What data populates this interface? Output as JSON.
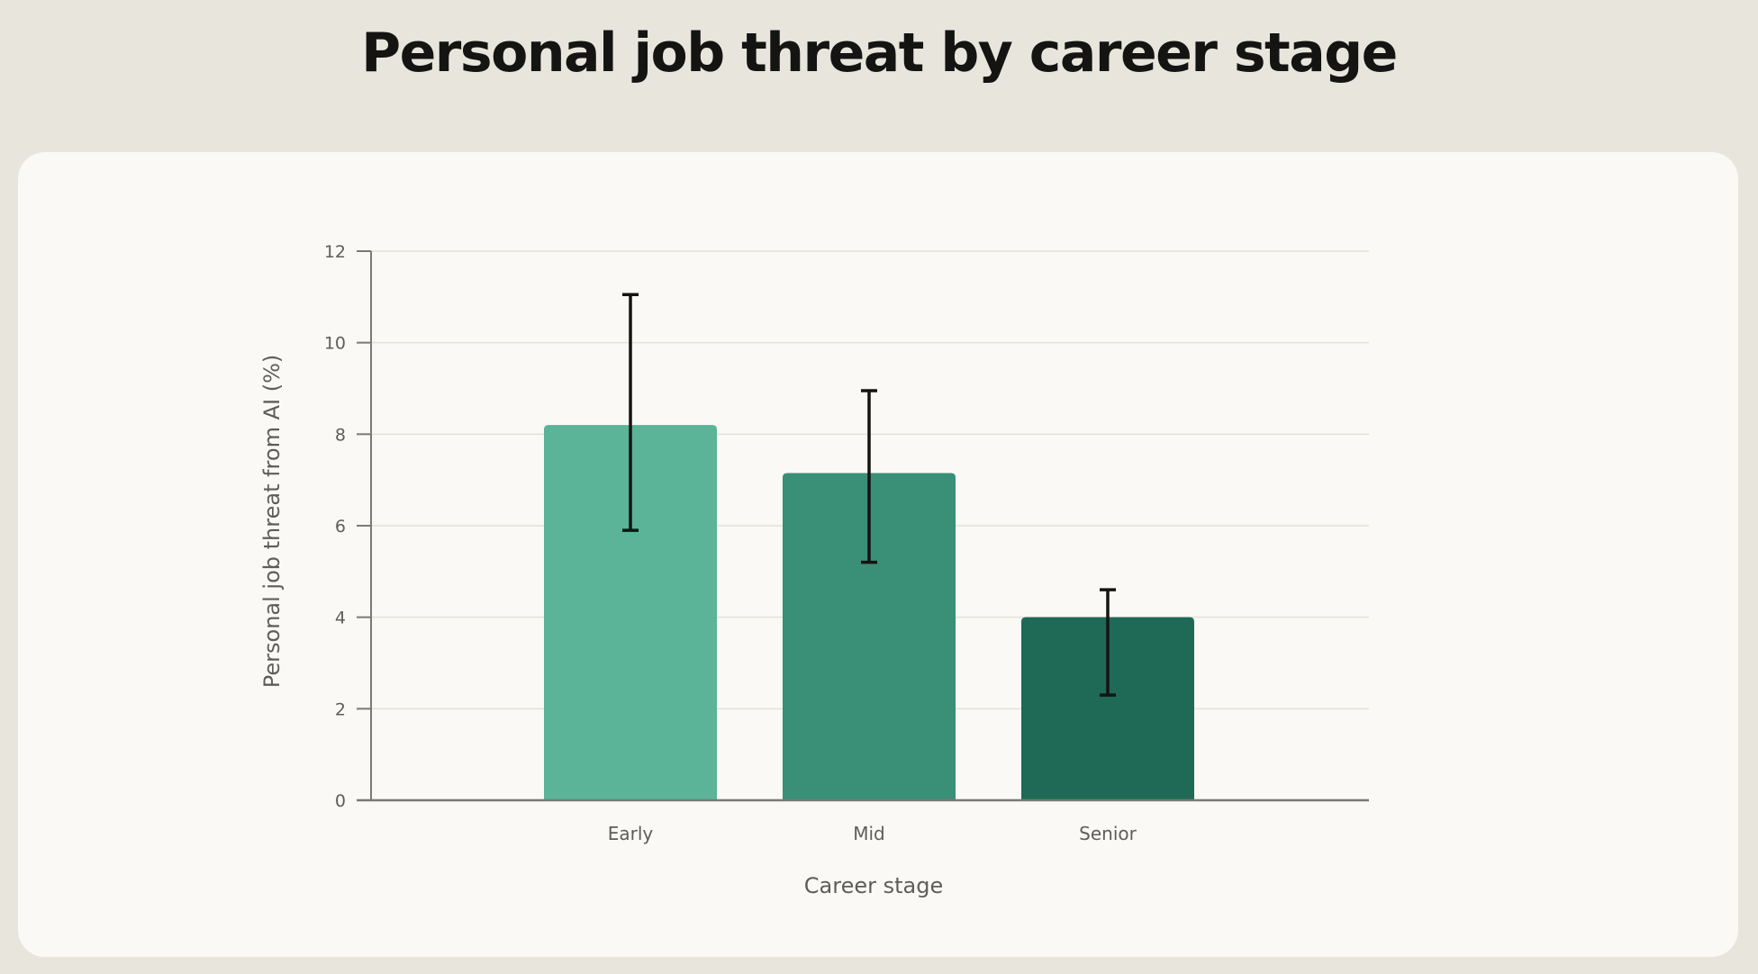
{
  "title": "Personal job threat by career stage",
  "chart_data": {
    "type": "bar",
    "title": "Personal job threat by career stage",
    "xlabel": "Career stage",
    "ylabel": "Personal job threat from AI (%)",
    "categories": [
      "Early",
      "Mid",
      "Senior"
    ],
    "values": [
      8.2,
      7.15,
      4.0
    ],
    "error_low": [
      5.9,
      5.2,
      2.3
    ],
    "error_high": [
      11.05,
      8.95,
      4.6
    ],
    "ylim": [
      0,
      12
    ],
    "yticks": [
      0,
      2,
      4,
      6,
      8,
      10,
      12
    ],
    "grid": true,
    "colors": [
      "#5bb398",
      "#3a8f77",
      "#1e6a57"
    ]
  }
}
